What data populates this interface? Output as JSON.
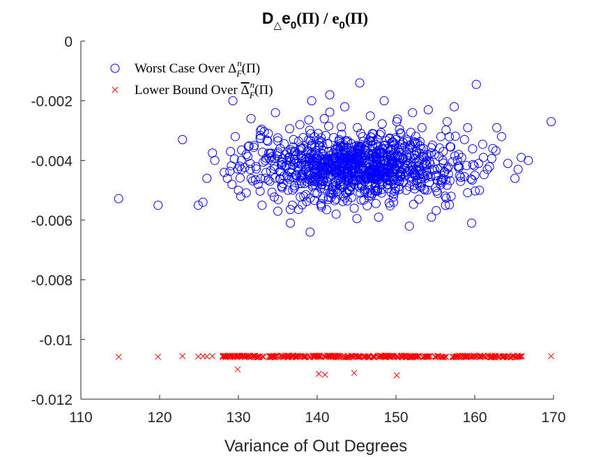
{
  "chart_data": {
    "type": "scatter",
    "title": {
      "prefix": "D",
      "sub1": "△",
      "mid": "e",
      "sub2": "0",
      "paren1": "(Π) / e",
      "sub3": "0",
      "paren2": "(Π)"
    },
    "xlabel": "Variance of Out Degrees",
    "ylabel": "",
    "xlim": [
      110,
      170
    ],
    "ylim": [
      -0.012,
      0
    ],
    "x_ticks": [
      110,
      120,
      130,
      140,
      150,
      160,
      170
    ],
    "x_tick_labels": [
      "110",
      "120",
      "130",
      "140",
      "150",
      "160",
      "170"
    ],
    "y_ticks": [
      0,
      -0.002,
      -0.004,
      -0.006,
      -0.008,
      -0.01,
      -0.012
    ],
    "y_tick_labels": [
      "0",
      "-0.002",
      "-0.004",
      "-0.006",
      "-0.008",
      "-0.01",
      "-0.012"
    ],
    "grid": false,
    "legend_position": "top-left",
    "series": [
      {
        "name": "Worst Case Over Δ^n_F(Π)",
        "legend": {
          "main": "Worst Case Over ",
          "delta": "Δ",
          "sup": "n",
          "sub": "F",
          "tail": "(Π)"
        },
        "marker": "circle",
        "color": "#0000ff",
        "points": [
          [
            114.8,
            -0.00528
          ],
          [
            119.8,
            -0.0055
          ],
          [
            122.9,
            -0.0033
          ],
          [
            124.9,
            -0.0055
          ],
          [
            125.5,
            -0.0054
          ],
          [
            126.0,
            -0.0046
          ],
          [
            126.7,
            -0.00375
          ],
          [
            127.0,
            -0.004
          ],
          [
            128.2,
            -0.0044
          ],
          [
            128.6,
            -0.0046
          ],
          [
            129.0,
            -0.0037
          ],
          [
            129.3,
            -0.002
          ],
          [
            129.6,
            -0.0032
          ],
          [
            130.0,
            -0.005
          ],
          [
            130.3,
            -0.0052
          ],
          [
            131.0,
            -0.0038
          ],
          [
            131.5,
            -0.0043
          ],
          [
            132.0,
            -0.0035
          ],
          [
            132.5,
            -0.0048
          ],
          [
            132.8,
            -0.003
          ],
          [
            133.0,
            -0.0055
          ],
          [
            133.4,
            -0.0046
          ],
          [
            133.8,
            -0.0031
          ],
          [
            134.2,
            -0.004
          ],
          [
            134.7,
            -0.0024
          ],
          [
            135.0,
            -0.0057
          ],
          [
            135.3,
            -0.0036
          ],
          [
            135.9,
            -0.0042
          ],
          [
            136.3,
            -0.005
          ],
          [
            136.6,
            -0.0061
          ],
          [
            137.0,
            -0.0033
          ],
          [
            137.4,
            -0.0045
          ],
          [
            137.8,
            -0.0028
          ],
          [
            138.3,
            -0.0052
          ],
          [
            138.7,
            -0.0039
          ],
          [
            139.1,
            -0.0064
          ],
          [
            139.3,
            -0.002
          ],
          [
            139.7,
            -0.0043
          ],
          [
            140.2,
            -0.0035
          ],
          [
            140.5,
            -0.0055
          ],
          [
            140.9,
            -0.0026
          ],
          [
            141.2,
            -0.0047
          ],
          [
            141.6,
            -0.0018
          ],
          [
            142.0,
            -0.0041
          ],
          [
            142.4,
            -0.0058
          ],
          [
            142.8,
            -0.0033
          ],
          [
            143.2,
            -0.0049
          ],
          [
            143.5,
            -0.0022
          ],
          [
            143.9,
            -0.0044
          ],
          [
            144.3,
            -0.0037
          ],
          [
            144.7,
            -0.0056
          ],
          [
            145.1,
            -0.0029
          ],
          [
            145.4,
            -0.0014
          ],
          [
            145.8,
            -0.0045
          ],
          [
            146.2,
            -0.004
          ],
          [
            146.6,
            -0.0052
          ],
          [
            147.0,
            -0.0031
          ],
          [
            147.4,
            -0.0043
          ],
          [
            147.8,
            -0.0059
          ],
          [
            148.2,
            -0.0036
          ],
          [
            148.5,
            -0.002
          ],
          [
            148.9,
            -0.0048
          ],
          [
            149.3,
            -0.0039
          ],
          [
            149.7,
            -0.0054
          ],
          [
            150.1,
            -0.0027
          ],
          [
            150.5,
            -0.0044
          ],
          [
            150.9,
            -0.0034
          ],
          [
            151.3,
            -0.005
          ],
          [
            151.7,
            -0.0062
          ],
          [
            152.1,
            -0.0024
          ],
          [
            152.5,
            -0.0041
          ],
          [
            152.9,
            -0.0053
          ],
          [
            153.3,
            -0.0029
          ],
          [
            153.7,
            -0.0046
          ],
          [
            154.1,
            -0.0023
          ],
          [
            154.5,
            -0.0059
          ],
          [
            154.9,
            -0.0038
          ],
          [
            155.3,
            -0.0051
          ],
          [
            155.7,
            -0.0032
          ],
          [
            156.1,
            -0.0044
          ],
          [
            156.5,
            -0.0027
          ],
          [
            157.0,
            -0.0052
          ],
          [
            157.4,
            -0.0022
          ],
          [
            157.8,
            -0.004
          ],
          [
            158.2,
            -0.0047
          ],
          [
            158.7,
            -0.0033
          ],
          [
            159.1,
            -0.0029
          ],
          [
            159.6,
            -0.0061
          ],
          [
            160.0,
            -0.0045
          ],
          [
            160.2,
            -0.00145
          ],
          [
            160.6,
            -0.005
          ],
          [
            161.1,
            -0.0039
          ],
          [
            161.6,
            -0.0043
          ],
          [
            162.3,
            -0.0036
          ],
          [
            162.8,
            -0.0029
          ],
          [
            163.4,
            -0.0032
          ],
          [
            164.2,
            -0.0041
          ],
          [
            165.1,
            -0.0046
          ],
          [
            165.9,
            -0.0039
          ],
          [
            166.8,
            -0.004
          ],
          [
            169.7,
            -0.0027
          ],
          [
            136.5,
            -0.0039
          ],
          [
            137.5,
            -0.0041
          ],
          [
            138.5,
            -0.0043
          ],
          [
            139.5,
            -0.0038
          ],
          [
            140.5,
            -0.0042
          ],
          [
            141.5,
            -0.004
          ],
          [
            142.5,
            -0.0044
          ],
          [
            143.5,
            -0.0039
          ],
          [
            144.5,
            -0.0041
          ],
          [
            145.5,
            -0.0043
          ],
          [
            146.5,
            -0.0038
          ],
          [
            147.5,
            -0.0042
          ],
          [
            148.5,
            -0.004
          ],
          [
            149.5,
            -0.0044
          ],
          [
            150.5,
            -0.0039
          ],
          [
            151.5,
            -0.0041
          ],
          [
            152.5,
            -0.0043
          ],
          [
            153.5,
            -0.0038
          ],
          [
            141.0,
            -0.0045
          ],
          [
            143.0,
            -0.0047
          ],
          [
            145.0,
            -0.0035
          ],
          [
            147.0,
            -0.0046
          ],
          [
            149.0,
            -0.0036
          ],
          [
            144.0,
            -0.0042
          ],
          [
            146.0,
            -0.004
          ],
          [
            134.0,
            -0.0047
          ],
          [
            138.0,
            -0.0036
          ],
          [
            142.0,
            -0.0049
          ],
          [
            150.0,
            -0.0033
          ],
          [
            154.0,
            -0.0045
          ],
          [
            131.5,
            -0.0041
          ],
          [
            133.5,
            -0.0044
          ],
          [
            156.0,
            -0.0037
          ],
          [
            158.0,
            -0.0042
          ],
          [
            160.5,
            -0.0041
          ]
        ]
      },
      {
        "name": "Lower Bound Over Δ̄^n_F(Π)",
        "legend": {
          "main": "Lower Bound Over ",
          "delta": "Δ",
          "sup": "n",
          "sub": "F",
          "tail": "(Π)"
        },
        "marker": "x",
        "color": "#ff0000",
        "points": [
          [
            114.8,
            -0.01058
          ],
          [
            119.8,
            -0.01058
          ],
          [
            122.9,
            -0.01056
          ],
          [
            124.9,
            -0.01057
          ],
          [
            125.5,
            -0.01056
          ],
          [
            126.0,
            -0.01057
          ],
          [
            126.7,
            -0.01056
          ],
          [
            128.0,
            -0.01057
          ],
          [
            129.0,
            -0.01057
          ],
          [
            129.9,
            -0.011
          ],
          [
            140.2,
            -0.01115
          ],
          [
            141.0,
            -0.01118
          ],
          [
            144.7,
            -0.01112
          ],
          [
            150.1,
            -0.0112
          ],
          [
            169.7,
            -0.01056
          ]
        ]
      }
    ]
  }
}
